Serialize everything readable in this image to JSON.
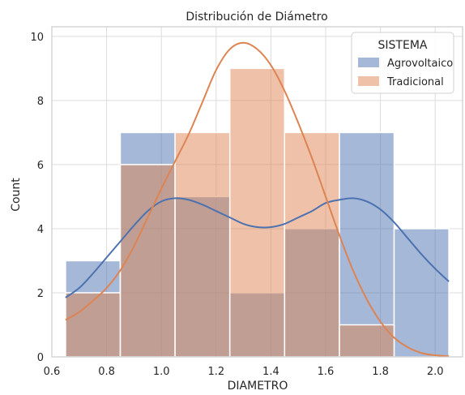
{
  "chart_data": {
    "type": "bar",
    "title": "Distribución de Diámetro",
    "xlabel": "DIAMETRO",
    "ylabel": "Count",
    "xlim": [
      0.6,
      2.1
    ],
    "ylim": [
      0,
      10.3
    ],
    "xticks": [
      0.6,
      0.8,
      1.0,
      1.2,
      1.4,
      1.6,
      1.8,
      2.0
    ],
    "xtick_labels": [
      "0.6",
      "0.8",
      "1.0",
      "1.2",
      "1.4",
      "1.6",
      "1.8",
      "2.0"
    ],
    "yticks": [
      0,
      2,
      4,
      6,
      8,
      10
    ],
    "ytick_labels": [
      "0",
      "2",
      "4",
      "6",
      "8",
      "10"
    ],
    "grid": true,
    "bin_edges": [
      0.65,
      0.85,
      1.05,
      1.25,
      1.45,
      1.65,
      1.85,
      2.05
    ],
    "legend": {
      "title": "SISTEMA",
      "placement": "top-right"
    },
    "series": [
      {
        "name": "Agrovoltaico",
        "color": "#4c72b0",
        "counts": [
          3,
          7,
          5,
          2,
          4,
          7,
          4
        ],
        "kde": {
          "x": [
            0.65,
            0.7,
            0.75,
            0.8,
            0.85,
            0.9,
            0.95,
            1.0,
            1.05,
            1.1,
            1.15,
            1.2,
            1.25,
            1.3,
            1.35,
            1.4,
            1.45,
            1.5,
            1.55,
            1.6,
            1.65,
            1.7,
            1.75,
            1.8,
            1.85,
            1.9,
            1.95,
            2.0,
            2.05
          ],
          "y": [
            1.85,
            2.15,
            2.6,
            3.1,
            3.6,
            4.1,
            4.55,
            4.85,
            4.95,
            4.9,
            4.75,
            4.55,
            4.35,
            4.15,
            4.05,
            4.05,
            4.15,
            4.35,
            4.55,
            4.8,
            4.9,
            4.95,
            4.85,
            4.6,
            4.2,
            3.7,
            3.2,
            2.75,
            2.35
          ]
        }
      },
      {
        "name": "Tradicional",
        "color": "#dd8452",
        "counts": [
          2,
          6,
          7,
          9,
          7,
          1,
          0
        ],
        "kde": {
          "x": [
            0.65,
            0.7,
            0.75,
            0.8,
            0.85,
            0.9,
            0.95,
            1.0,
            1.05,
            1.1,
            1.15,
            1.2,
            1.25,
            1.3,
            1.35,
            1.4,
            1.45,
            1.5,
            1.55,
            1.6,
            1.65,
            1.7,
            1.75,
            1.8,
            1.85,
            1.9,
            1.95,
            2.0,
            2.05
          ],
          "y": [
            1.15,
            1.4,
            1.75,
            2.15,
            2.7,
            3.45,
            4.35,
            5.25,
            6.1,
            6.95,
            7.95,
            8.95,
            9.6,
            9.8,
            9.6,
            9.1,
            8.3,
            7.3,
            6.2,
            5.0,
            3.8,
            2.7,
            1.8,
            1.1,
            0.6,
            0.3,
            0.12,
            0.05,
            0.02
          ]
        }
      }
    ]
  }
}
